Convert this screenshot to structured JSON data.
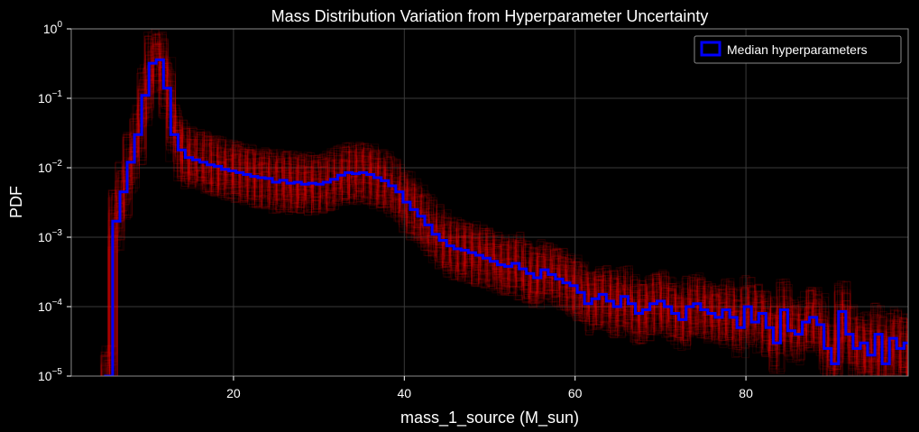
{
  "chart_data": {
    "type": "line",
    "title": "Mass Distribution Variation from Hyperparameter Uncertainty",
    "xlabel": "mass_1_source (M_sun)",
    "ylabel": "PDF",
    "xlim": [
      1,
      99
    ],
    "ylim": [
      1e-05,
      1
    ],
    "yscale": "log",
    "grid": true,
    "legend_position": "top-right",
    "x_ticks": [
      {
        "value": 20,
        "label": "20"
      },
      {
        "value": 40,
        "label": "40"
      },
      {
        "value": 60,
        "label": "60"
      },
      {
        "value": 80,
        "label": "80"
      }
    ],
    "y_ticks": [
      {
        "value": 1e-05,
        "base": "10",
        "exp": "−5"
      },
      {
        "value": 0.0001,
        "base": "10",
        "exp": "−4"
      },
      {
        "value": 0.001,
        "base": "10",
        "exp": "−3"
      },
      {
        "value": 0.01,
        "base": "10",
        "exp": "−2"
      },
      {
        "value": 0.1,
        "base": "10",
        "exp": "−1"
      },
      {
        "value": 1,
        "base": "10",
        "exp": "0"
      }
    ],
    "bin_width": 0.85,
    "series": [
      {
        "name": "Median hyperparameters",
        "color": "#0000ff",
        "style": "step",
        "x": [
          5.0,
          5.85,
          6.7,
          7.55,
          8.4,
          9.25,
          10.1,
          10.95,
          11.8,
          12.65,
          13.5,
          14.35,
          15.2,
          16.05,
          16.9,
          17.75,
          18.6,
          19.45,
          20.3,
          21.15,
          22.0,
          22.85,
          23.7,
          24.55,
          25.4,
          26.25,
          27.1,
          27.95,
          28.8,
          29.65,
          30.5,
          31.35,
          32.2,
          33.05,
          33.9,
          34.75,
          35.6,
          36.45,
          37.3,
          38.15,
          39.0,
          39.85,
          40.7,
          41.55,
          42.4,
          43.25,
          44.1,
          44.95,
          45.8,
          46.65,
          47.5,
          48.35,
          49.2,
          50.05,
          50.9,
          51.75,
          52.6,
          53.45,
          54.3,
          55.15,
          56.0,
          56.85,
          57.7,
          58.55,
          59.4,
          60.25,
          61.1,
          61.95,
          62.8,
          63.65,
          64.5,
          65.35,
          66.2,
          67.05,
          67.9,
          68.75,
          69.6,
          70.45,
          71.3,
          72.15,
          73.0,
          73.85,
          74.7,
          75.55,
          76.4,
          77.25,
          78.1,
          78.95,
          79.8,
          80.65,
          81.5,
          82.35,
          83.2,
          84.05,
          84.9,
          85.75,
          86.6,
          87.45,
          88.3,
          89.15,
          90.0,
          90.85,
          91.7,
          92.55,
          93.4,
          94.25,
          95.1,
          95.95,
          96.8,
          97.65,
          98.5
        ],
        "values": [
          1e-05,
          0.0017,
          0.0045,
          0.012,
          0.03,
          0.11,
          0.32,
          0.36,
          0.14,
          0.03,
          0.018,
          0.014,
          0.013,
          0.012,
          0.011,
          0.0105,
          0.0095,
          0.009,
          0.0085,
          0.008,
          0.0075,
          0.0072,
          0.007,
          0.0062,
          0.0066,
          0.006,
          0.0062,
          0.0058,
          0.006,
          0.0058,
          0.0062,
          0.0068,
          0.0078,
          0.0085,
          0.0082,
          0.0085,
          0.008,
          0.0072,
          0.0065,
          0.0055,
          0.0045,
          0.0032,
          0.0025,
          0.002,
          0.0015,
          0.0011,
          0.0009,
          0.00075,
          0.00068,
          0.00065,
          0.0006,
          0.00055,
          0.0005,
          0.00045,
          0.0004,
          0.00038,
          0.00042,
          0.00035,
          0.0003,
          0.00026,
          0.00034,
          0.00029,
          0.00025,
          0.00022,
          0.0002,
          0.00016,
          0.00011,
          0.00013,
          0.00015,
          0.00012,
          0.0001,
          0.00014,
          0.00011,
          8e-05,
          9e-05,
          0.00011,
          0.00012,
          0.0001,
          8e-05,
          6.5e-05,
          0.0001,
          0.00011,
          9e-05,
          8e-05,
          7e-05,
          9e-05,
          7e-05,
          5e-05,
          0.0001,
          6e-05,
          8e-05,
          5e-05,
          3e-05,
          9e-05,
          4.5e-05,
          4e-05,
          6e-05,
          7e-05,
          5.5e-05,
          2.5e-05,
          1.5e-05,
          8.5e-05,
          4e-05,
          2.5e-05,
          3e-05,
          2e-05,
          4e-05,
          1.5e-05,
          3.5e-05,
          2.5e-05,
          3e-05
        ]
      },
      {
        "color": "#ff0000",
        "style": "step-envelope",
        "opacity": 0.12,
        "spread": 0.45
      }
    ]
  }
}
